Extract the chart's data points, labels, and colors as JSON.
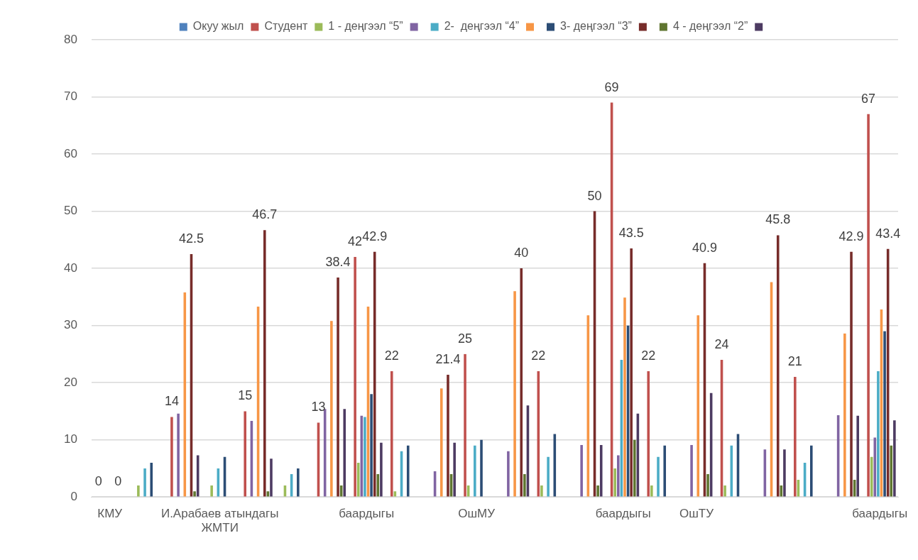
{
  "chart_data": {
    "type": "bar",
    "categories": [
      "КМУ",
      null,
      null,
      "И.Арабаев атындагы ЖМТИ",
      null,
      null,
      null,
      "баардыгы",
      null,
      null,
      "ОшМУ",
      null,
      null,
      null,
      "баардыгы",
      null,
      "ОшТУ",
      null,
      null,
      null,
      null,
      "баардыгы"
    ],
    "series": [
      {
        "name": "Окуу жыл",
        "color": "#4f81bd",
        "values": [
          null,
          null,
          null,
          null,
          null,
          null,
          null,
          null,
          null,
          null,
          null,
          null,
          null,
          null,
          null,
          null,
          null,
          null,
          null,
          null,
          null,
          null
        ]
      },
      {
        "name": "Студент",
        "color": "#c0504d",
        "values": [
          0,
          null,
          14,
          null,
          15,
          null,
          13,
          42,
          22,
          null,
          25,
          null,
          22,
          null,
          69,
          22,
          null,
          24,
          null,
          21,
          null,
          67
        ],
        "value_labels": [
          "0",
          null,
          "14",
          null,
          "15",
          null,
          "13",
          "42",
          "22",
          null,
          "25",
          null,
          "22",
          null,
          "69",
          "22",
          null,
          "24",
          null,
          "21",
          null,
          "67"
        ]
      },
      {
        "name": "1 - деңгээл “5”",
        "color": "#9bbb59",
        "values": [
          null,
          2,
          null,
          2,
          null,
          2,
          null,
          6,
          1,
          null,
          2,
          null,
          2,
          null,
          5,
          2,
          null,
          2,
          null,
          3,
          null,
          7
        ]
      },
      {
        "color": "#8064a2",
        "values": [
          null,
          null,
          14.6,
          null,
          13.3,
          null,
          15.4,
          14.2,
          null,
          4.5,
          null,
          8,
          null,
          9.1,
          7.3,
          null,
          9.1,
          null,
          8.3,
          null,
          14.3,
          10.4
        ]
      },
      {
        "name": "2-  деңгээл “4”",
        "color": "#4bacc6",
        "values": [
          null,
          5,
          null,
          5,
          null,
          4,
          null,
          14,
          8,
          null,
          9,
          null,
          7,
          null,
          24,
          7,
          null,
          9,
          null,
          6,
          null,
          22
        ]
      },
      {
        "color": "#f79646",
        "values": [
          null,
          null,
          35.8,
          null,
          33.3,
          null,
          30.8,
          33.3,
          null,
          19,
          null,
          36,
          null,
          31.8,
          34.9,
          null,
          31.8,
          null,
          37.6,
          null,
          28.6,
          32.8
        ]
      },
      {
        "name": "3- деңгээл “3”",
        "color": "#2c4d75",
        "values": [
          null,
          6,
          null,
          7,
          null,
          5,
          null,
          18,
          9,
          null,
          10,
          null,
          11,
          null,
          30,
          9,
          null,
          11,
          null,
          9,
          null,
          29
        ]
      },
      {
        "color": "#772c2a",
        "values": [
          0,
          null,
          42.5,
          null,
          46.7,
          null,
          38.4,
          42.9,
          null,
          21.4,
          null,
          40,
          null,
          50,
          43.5,
          null,
          40.9,
          null,
          45.8,
          null,
          42.9,
          43.4
        ],
        "value_labels": [
          "0",
          null,
          "42.5",
          null,
          "46.7",
          null,
          "38.4",
          "42.9",
          null,
          "21.4",
          null,
          "40",
          null,
          "50",
          "43.5",
          null,
          "40.9",
          null,
          "45.8",
          null,
          "42.9",
          "43.4"
        ]
      },
      {
        "name": "4 - деңгээл “2”",
        "color": "#5f7530",
        "values": [
          null,
          null,
          1,
          null,
          1,
          null,
          2,
          4,
          null,
          4,
          null,
          4,
          null,
          2,
          10,
          null,
          4,
          null,
          2,
          null,
          3,
          9
        ]
      },
      {
        "color": "#4d3b62",
        "values": [
          null,
          null,
          7.3,
          null,
          6.7,
          null,
          15.4,
          9.5,
          null,
          9.5,
          null,
          16,
          null,
          9.1,
          14.6,
          null,
          18.2,
          null,
          8.3,
          null,
          14.2,
          13.4
        ]
      }
    ],
    "ylim": [
      0,
      80
    ],
    "yticks": [
      0,
      10,
      20,
      30,
      40,
      50,
      60,
      70,
      80
    ],
    "grid": "y",
    "legend": "top"
  }
}
